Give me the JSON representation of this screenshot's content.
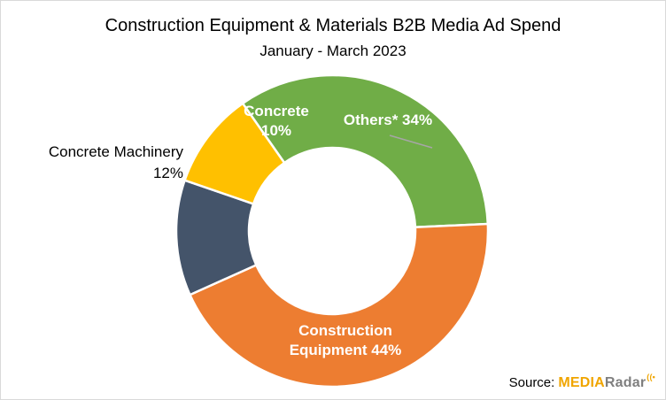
{
  "header": {
    "title": "Construction Equipment & Materials B2B Media Ad Spend",
    "subtitle": "January - March 2023"
  },
  "chart_data": {
    "type": "pie",
    "donut": true,
    "categories": [
      "Others*",
      "Construction Equipment",
      "Concrete Machinery",
      "Concrete"
    ],
    "values": [
      34,
      44,
      12,
      10
    ],
    "colors": [
      "#70ad47",
      "#ed7d31",
      "#44546a",
      "#ffc000"
    ],
    "labels": [
      [
        "Others* 34%"
      ],
      [
        "Construction",
        "Equipment 44%"
      ],
      [
        "Concrete Machinery",
        "12%"
      ],
      [
        "Concrete",
        "10%"
      ]
    ],
    "title": "Construction Equipment & Materials B2B Media Ad Spend",
    "subtitle": "January - March 2023"
  },
  "footer": {
    "source_label": "Source:",
    "logo_media": "MEDIA",
    "logo_radar": "Radar",
    "logo_mark": "((•"
  }
}
